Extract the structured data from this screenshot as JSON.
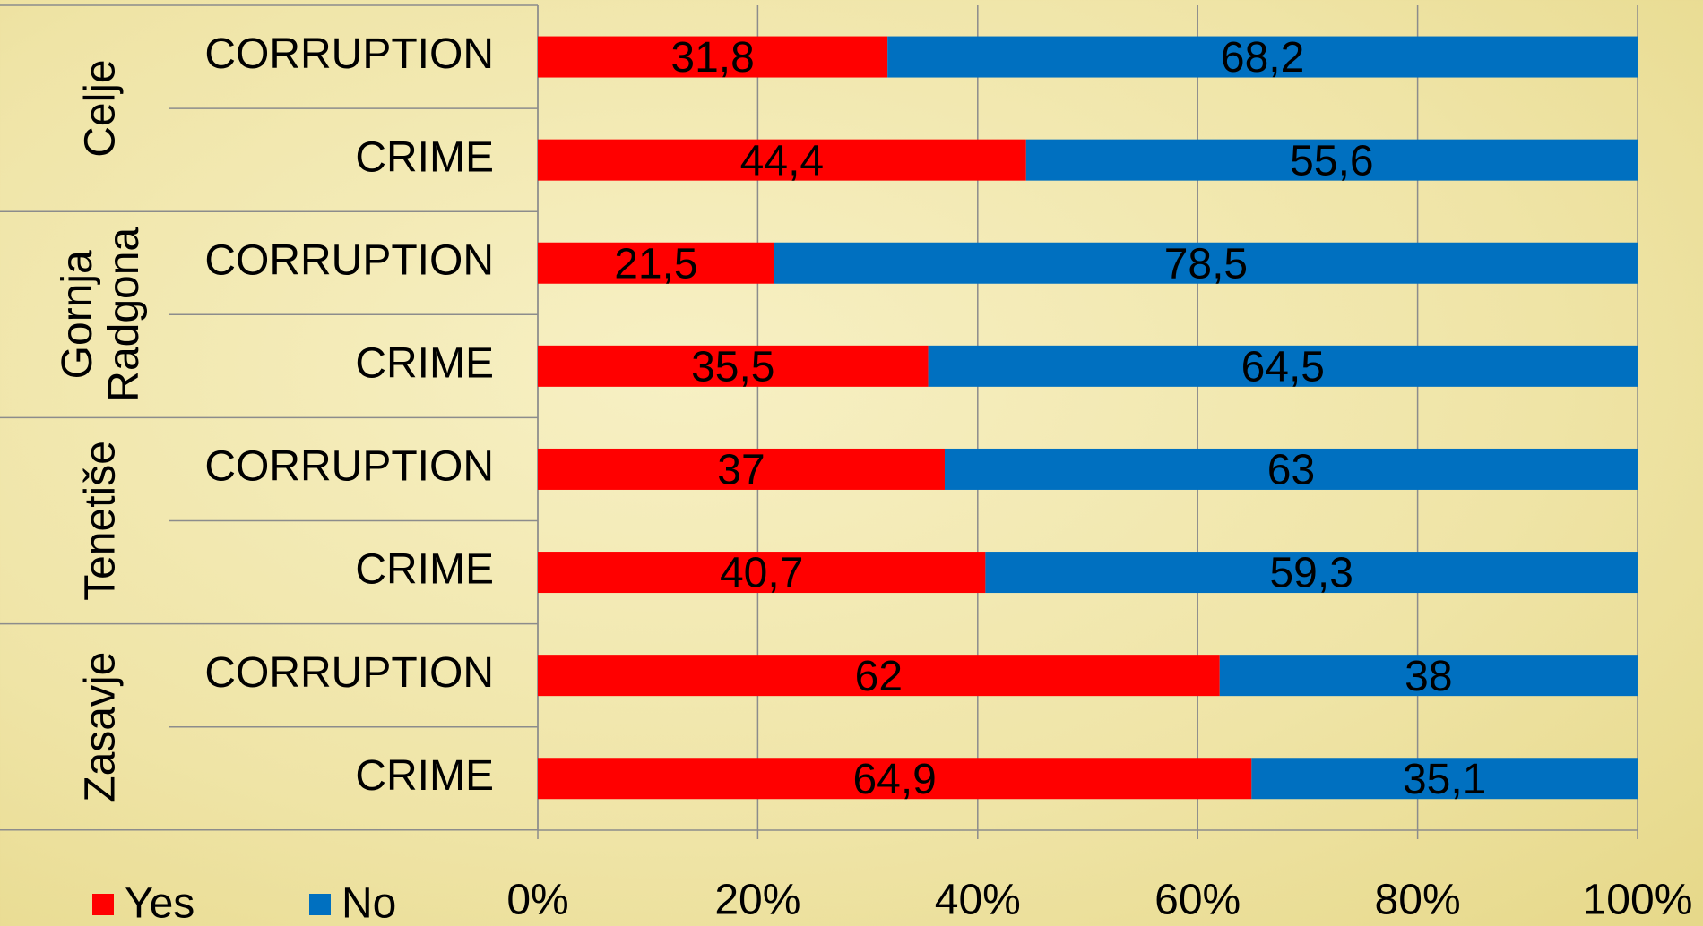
{
  "chart_data": {
    "type": "bar",
    "orientation": "horizontal",
    "stacked": true,
    "groups": [
      {
        "name": "Celje",
        "categories": [
          "CORRUPTION",
          "CRIME"
        ]
      },
      {
        "name": "Gornja Radgona",
        "categories": [
          "CORRUPTION",
          "CRIME"
        ]
      },
      {
        "name": "Tenetiše",
        "categories": [
          "CORRUPTION",
          "CRIME"
        ]
      },
      {
        "name": "Zasavje",
        "categories": [
          "CORRUPTION",
          "CRIME"
        ]
      }
    ],
    "series": [
      {
        "name": "Yes",
        "color": "#ff0000",
        "values": [
          31.8,
          44.4,
          21.5,
          35.5,
          37,
          40.7,
          62,
          64.9
        ],
        "value_labels": [
          "31,8",
          "44,4",
          "21,5",
          "35,5",
          "37",
          "40,7",
          "62",
          "64,9"
        ]
      },
      {
        "name": "No",
        "color": "#0070c0",
        "values": [
          68.2,
          55.6,
          78.5,
          64.5,
          63,
          59.3,
          38,
          35.1
        ],
        "value_labels": [
          "68,2",
          "55,6",
          "78,5",
          "64,5",
          "63",
          "59,3",
          "38",
          "35,1"
        ]
      }
    ],
    "xlim": [
      0,
      100
    ],
    "xticks": [
      {
        "value": 0,
        "label": "0%"
      },
      {
        "value": 20,
        "label": "20%"
      },
      {
        "value": 40,
        "label": "40%"
      },
      {
        "value": 60,
        "label": "60%"
      },
      {
        "value": 80,
        "label": "80%"
      },
      {
        "value": 100,
        "label": "100%"
      }
    ],
    "grid": true,
    "legend": "bottom-left"
  }
}
